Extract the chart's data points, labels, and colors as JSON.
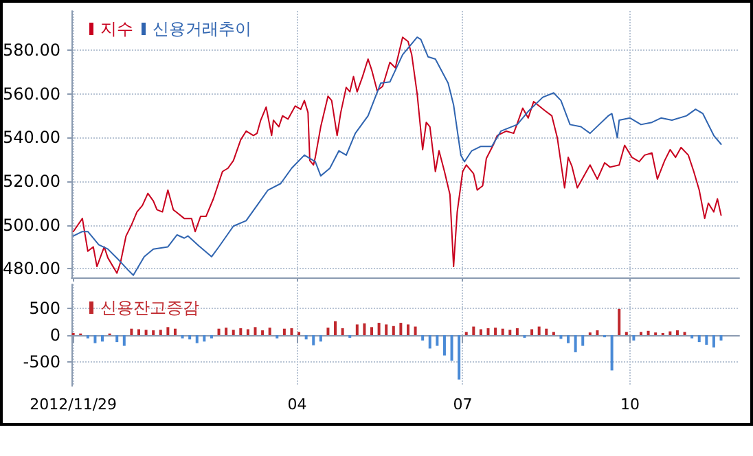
{
  "chart_data": [
    {
      "type": "line",
      "legend": "top left",
      "grid": true,
      "marker": "none",
      "line_style": "solid",
      "tick_labels": "y",
      "xlim": [
        "2012-11-28",
        "2013-11-30"
      ],
      "ylim": [
        476,
        598
      ],
      "xticks": [
        {
          "value": "2012-11-29",
          "label": null
        },
        {
          "value": "2013-04-01",
          "label": null
        },
        {
          "value": "2013-07-01",
          "label": null
        },
        {
          "value": "2013-10-01",
          "label": null
        }
      ],
      "yticks": [
        {
          "value": 480,
          "label": "480.00"
        },
        {
          "value": 500,
          "label": "500.00"
        },
        {
          "value": 520,
          "label": "520.00"
        },
        {
          "value": 540,
          "label": "540.00"
        },
        {
          "value": 560,
          "label": "560.00"
        },
        {
          "value": 580,
          "label": "580.00"
        }
      ],
      "series": [
        {
          "name": "지수",
          "color": "#c8001e",
          "x": [
            "2012-11-29",
            "2012-12-04",
            "2012-12-07",
            "2012-12-10",
            "2012-12-12",
            "2012-12-16",
            "2012-12-18",
            "2012-12-23",
            "2012-12-25",
            "2012-12-28",
            "2012-12-31",
            "2013-01-03",
            "2013-01-06",
            "2013-01-09",
            "2013-01-12",
            "2013-01-14",
            "2013-01-17",
            "2013-01-20",
            "2013-01-23",
            "2013-01-29",
            "2013-02-02",
            "2013-02-04",
            "2013-02-07",
            "2013-02-10",
            "2013-02-14",
            "2013-02-19",
            "2013-02-22",
            "2013-02-25",
            "2013-03-01",
            "2013-03-04",
            "2013-03-08",
            "2013-03-10",
            "2013-03-12",
            "2013-03-15",
            "2013-03-18",
            "2013-03-19",
            "2013-03-22",
            "2013-03-24",
            "2013-03-27",
            "2013-03-31",
            "2013-04-03",
            "2013-04-05",
            "2013-04-07",
            "2013-04-08",
            "2013-04-10",
            "2013-04-11",
            "2013-04-14",
            "2013-04-18",
            "2013-04-20",
            "2013-04-23",
            "2013-04-25",
            "2013-04-28",
            "2013-04-30",
            "2013-05-02",
            "2013-05-04",
            "2013-05-07",
            "2013-05-10",
            "2013-05-12",
            "2013-05-15",
            "2013-05-18",
            "2013-05-22",
            "2013-05-25",
            "2013-05-29",
            "2013-06-01",
            "2013-06-03",
            "2013-06-06",
            "2013-06-09",
            "2013-06-11",
            "2013-06-13",
            "2013-06-16",
            "2013-06-18",
            "2013-06-21",
            "2013-06-24",
            "2013-06-26",
            "2013-06-28",
            "2013-07-01",
            "2013-07-03",
            "2013-07-07",
            "2013-07-09",
            "2013-07-12",
            "2013-07-14",
            "2013-07-18",
            "2013-07-20",
            "2013-07-25",
            "2013-07-29",
            "2013-07-31",
            "2013-08-03",
            "2013-08-06",
            "2013-08-09",
            "2013-08-12",
            "2013-08-15",
            "2013-08-19",
            "2013-08-22",
            "2013-08-26",
            "2013-08-28",
            "2013-08-30",
            "2013-09-02",
            "2013-09-04",
            "2013-09-06",
            "2013-09-09",
            "2013-09-13",
            "2013-09-17",
            "2013-09-20",
            "2013-09-25",
            "2013-09-28",
            "2013-10-02",
            "2013-10-06",
            "2013-10-09",
            "2013-10-13",
            "2013-10-16",
            "2013-10-20",
            "2013-10-23",
            "2013-10-26",
            "2013-10-29",
            "2013-11-02",
            "2013-11-05",
            "2013-11-08",
            "2013-11-11",
            "2013-11-13",
            "2013-11-16",
            "2013-11-18",
            "2013-11-20"
          ],
          "values": [
            497,
            503,
            488,
            490,
            481,
            490,
            485,
            478,
            483,
            495,
            500,
            506,
            509,
            514.5,
            511,
            507,
            506,
            516,
            507,
            503,
            503,
            497,
            504,
            504,
            512,
            524.5,
            526,
            529.5,
            539,
            543,
            541,
            542,
            548,
            554,
            541,
            548,
            545,
            550,
            548.5,
            554.5,
            553,
            557,
            551.5,
            529.5,
            527.5,
            531,
            545,
            559,
            557,
            541,
            551.5,
            563,
            561,
            568,
            561,
            568,
            576,
            571,
            561.5,
            563.5,
            574.5,
            572,
            586,
            584,
            578,
            560,
            534.5,
            547,
            545,
            524.5,
            534,
            524.5,
            514,
            481,
            506,
            524.5,
            527.5,
            523.5,
            516,
            518,
            530.5,
            537,
            541,
            543,
            542,
            546.5,
            553.5,
            549,
            556.5,
            554.5,
            552.5,
            550,
            540,
            517,
            531,
            527,
            517,
            520,
            523,
            527.5,
            521,
            528.5,
            526.5,
            527.5,
            536.5,
            531,
            529,
            532,
            533,
            521,
            529.5,
            534.5,
            531,
            535.5,
            532,
            524.5,
            516,
            503,
            510,
            506,
            512,
            504.5
          ]
        },
        {
          "name": "신용거래추이",
          "color": "#2f64b0",
          "x": [
            "2012-11-29",
            "2012-12-04",
            "2012-12-07",
            "2012-12-13",
            "2012-12-18",
            "2012-12-24",
            "2012-12-29",
            "2013-01-01",
            "2013-01-07",
            "2013-01-12",
            "2013-01-20",
            "2013-01-25",
            "2013-01-29",
            "2013-01-31",
            "2013-02-06",
            "2013-02-13",
            "2013-02-17",
            "2013-02-25",
            "2013-03-04",
            "2013-03-10",
            "2013-03-16",
            "2013-03-23",
            "2013-03-29",
            "2013-04-05",
            "2013-04-11",
            "2013-04-14",
            "2013-04-19",
            "2013-04-24",
            "2013-04-28",
            "2013-05-03",
            "2013-05-10",
            "2013-05-17",
            "2013-05-22",
            "2013-05-29",
            "2013-06-06",
            "2013-06-08",
            "2013-06-12",
            "2013-06-16",
            "2013-06-23",
            "2013-06-26",
            "2013-06-30",
            "2013-07-02",
            "2013-07-06",
            "2013-07-11",
            "2013-07-17",
            "2013-07-22",
            "2013-07-31",
            "2013-08-06",
            "2013-08-14",
            "2013-08-20",
            "2013-08-24",
            "2013-08-29",
            "2013-09-04",
            "2013-09-09",
            "2013-09-14",
            "2013-09-19",
            "2013-09-21",
            "2013-09-24",
            "2013-09-25",
            "2013-10-01",
            "2013-10-07",
            "2013-10-13",
            "2013-10-18",
            "2013-10-24",
            "2013-11-01",
            "2013-11-06",
            "2013-11-10",
            "2013-11-16",
            "2013-11-20"
          ],
          "values": [
            495,
            497,
            497,
            491,
            489,
            484,
            479.5,
            477,
            485.5,
            489,
            490,
            495.5,
            494,
            495,
            490.5,
            485.5,
            490,
            499.5,
            502,
            509,
            516,
            519,
            526,
            532,
            529,
            522.5,
            526,
            534,
            532,
            542,
            550,
            565,
            565.5,
            578,
            586,
            585,
            577,
            576,
            565,
            555,
            532,
            529,
            534,
            536,
            536,
            543,
            546,
            552,
            558.5,
            560.5,
            557,
            546,
            545,
            542,
            546,
            550,
            551,
            540,
            548,
            549,
            546,
            547,
            549,
            548,
            550,
            553,
            551,
            541,
            537
          ]
        }
      ]
    },
    {
      "type": "bar",
      "legend": "top left",
      "grid": true,
      "xlim": [
        "2012-11-28",
        "2013-11-30"
      ],
      "ylim": [
        -950,
        950
      ],
      "xticks": [
        {
          "value": "2012-11-29",
          "label": "2012/11/29"
        },
        {
          "value": "2013-04-01",
          "label": "04"
        },
        {
          "value": "2013-07-01",
          "label": "07"
        },
        {
          "value": "2013-10-01",
          "label": "10"
        }
      ],
      "yticks": [
        -500,
        0,
        500
      ],
      "series": [
        {
          "name": "신용잔고증감",
          "color": "#c0282d",
          "x": [
            "2012-11-29",
            "2012-12-03",
            "2012-12-07",
            "2012-12-11",
            "2012-12-15",
            "2012-12-19",
            "2012-12-23",
            "2012-12-27",
            "2012-12-31",
            "2013-01-04",
            "2013-01-08",
            "2013-01-12",
            "2013-01-16",
            "2013-01-20",
            "2013-01-24",
            "2013-01-28",
            "2013-02-01",
            "2013-02-05",
            "2013-02-09",
            "2013-02-13",
            "2013-02-17",
            "2013-02-21",
            "2013-02-25",
            "2013-03-01",
            "2013-03-05",
            "2013-03-09",
            "2013-03-13",
            "2013-03-17",
            "2013-03-21",
            "2013-03-25",
            "2013-03-29",
            "2013-04-02",
            "2013-04-06",
            "2013-04-10",
            "2013-04-14",
            "2013-04-18",
            "2013-04-22",
            "2013-04-26",
            "2013-04-30",
            "2013-05-04",
            "2013-05-08",
            "2013-05-12",
            "2013-05-16",
            "2013-05-20",
            "2013-05-24",
            "2013-05-28",
            "2013-06-01",
            "2013-06-05",
            "2013-06-09",
            "2013-06-13",
            "2013-06-17",
            "2013-06-21",
            "2013-06-25",
            "2013-06-29",
            "2013-07-03",
            "2013-07-07",
            "2013-07-11",
            "2013-07-15",
            "2013-07-19",
            "2013-07-23",
            "2013-07-27",
            "2013-07-31",
            "2013-08-04",
            "2013-08-08",
            "2013-08-12",
            "2013-08-16",
            "2013-08-20",
            "2013-08-24",
            "2013-08-28",
            "2013-09-01",
            "2013-09-05",
            "2013-09-09",
            "2013-09-13",
            "2013-09-17",
            "2013-09-21",
            "2013-09-25",
            "2013-09-29",
            "2013-10-03",
            "2013-10-07",
            "2013-10-11",
            "2013-10-15",
            "2013-10-19",
            "2013-10-23",
            "2013-10-27",
            "2013-10-31",
            "2013-11-04",
            "2013-11-08",
            "2013-11-12",
            "2013-11-16",
            "2013-11-20"
          ],
          "values": [
            40,
            30,
            -60,
            -150,
            -120,
            30,
            -130,
            -200,
            120,
            110,
            100,
            90,
            100,
            150,
            120,
            -60,
            -80,
            -150,
            -120,
            -60,
            120,
            140,
            100,
            130,
            110,
            150,
            90,
            140,
            -60,
            120,
            130,
            60,
            -80,
            -190,
            -120,
            140,
            260,
            130,
            -50,
            200,
            220,
            150,
            230,
            200,
            170,
            230,
            200,
            160,
            -100,
            -250,
            -200,
            -380,
            -480,
            -830,
            60,
            160,
            110,
            130,
            140,
            120,
            100,
            130,
            -50,
            110,
            160,
            120,
            60,
            -70,
            -150,
            -320,
            -200,
            50,
            90,
            -40,
            -660,
            490,
            60,
            -100,
            60,
            80,
            50,
            40,
            70,
            90,
            60,
            -60,
            -130,
            -180,
            -230,
            -100
          ],
          "colors": [
            "#c0282d",
            "#c0282d",
            "#4a8ad6",
            "#4a8ad6",
            "#4a8ad6",
            "#c0282d",
            "#4a8ad6",
            "#4a8ad6",
            "#c0282d",
            "#c0282d",
            "#c0282d",
            "#c0282d",
            "#c0282d",
            "#c0282d",
            "#c0282d",
            "#4a8ad6",
            "#4a8ad6",
            "#4a8ad6",
            "#4a8ad6",
            "#4a8ad6",
            "#c0282d",
            "#c0282d",
            "#c0282d",
            "#c0282d",
            "#c0282d",
            "#c0282d",
            "#c0282d",
            "#c0282d",
            "#4a8ad6",
            "#c0282d",
            "#c0282d",
            "#c0282d",
            "#4a8ad6",
            "#4a8ad6",
            "#4a8ad6",
            "#c0282d",
            "#c0282d",
            "#c0282d",
            "#4a8ad6",
            "#c0282d",
            "#c0282d",
            "#c0282d",
            "#c0282d",
            "#c0282d",
            "#c0282d",
            "#c0282d",
            "#c0282d",
            "#c0282d",
            "#4a8ad6",
            "#4a8ad6",
            "#4a8ad6",
            "#4a8ad6",
            "#4a8ad6",
            "#4a8ad6",
            "#c0282d",
            "#c0282d",
            "#c0282d",
            "#c0282d",
            "#c0282d",
            "#c0282d",
            "#c0282d",
            "#c0282d",
            "#4a8ad6",
            "#c0282d",
            "#c0282d",
            "#c0282d",
            "#c0282d",
            "#4a8ad6",
            "#4a8ad6",
            "#4a8ad6",
            "#4a8ad6",
            "#c0282d",
            "#c0282d",
            "#4a8ad6",
            "#4a8ad6",
            "#c0282d",
            "#c0282d",
            "#4a8ad6",
            "#c0282d",
            "#c0282d",
            "#c0282d",
            "#c0282d",
            "#c0282d",
            "#c0282d",
            "#c0282d",
            "#4a8ad6",
            "#4a8ad6",
            "#4a8ad6",
            "#4a8ad6",
            "#4a8ad6"
          ]
        }
      ]
    }
  ]
}
